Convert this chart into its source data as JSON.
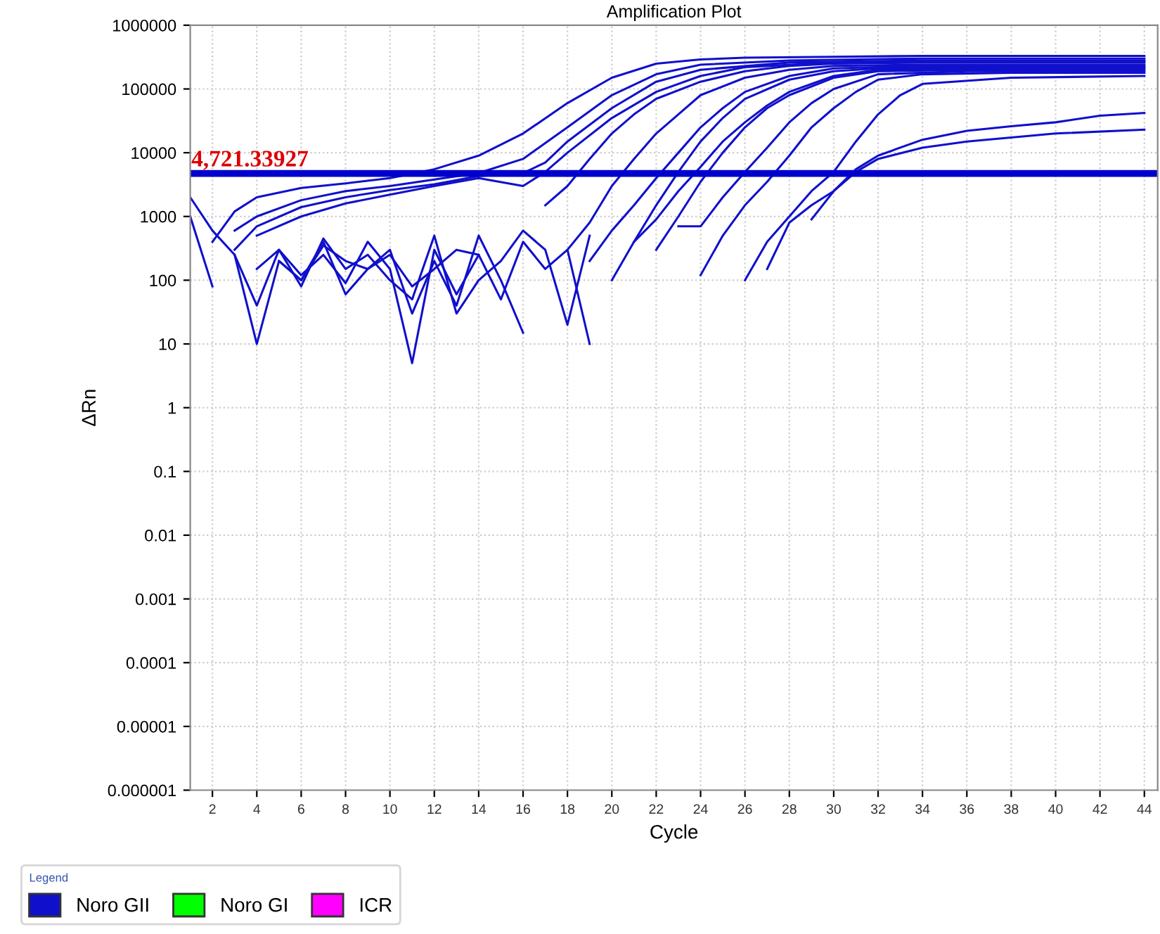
{
  "chart_data": {
    "type": "line",
    "title": "Amplification Plot",
    "xlabel": "Cycle",
    "ylabel": "ΔRn",
    "log": "y",
    "grid": true,
    "legend": "bottom",
    "legend_title": "Legend",
    "line_style": "solid",
    "marker": "none",
    "xlim": [
      1,
      44.6
    ],
    "xticks": [
      2,
      4,
      6,
      8,
      10,
      12,
      14,
      16,
      18,
      20,
      22,
      24,
      26,
      28,
      30,
      32,
      34,
      36,
      38,
      40,
      42,
      44
    ],
    "ylim": [
      1e-06,
      1000000
    ],
    "yticks": [
      {
        "value": 1e-06,
        "label": "0.000001"
      },
      {
        "value": 1e-05,
        "label": "0.00001"
      },
      0.0001,
      0.001,
      0.01,
      0.1,
      1,
      10,
      100,
      1000,
      10000,
      100000,
      1000000
    ],
    "ref_lines": [
      {
        "axis": "y",
        "value": 4721.33927,
        "label": "4,721.33927",
        "color": "#0000cc"
      }
    ],
    "series": [
      {
        "name": "Noro GII",
        "color": "#1010cc",
        "x": [
          2,
          3,
          4,
          6,
          8,
          10,
          12,
          14,
          16,
          18,
          20,
          22,
          24,
          26,
          30,
          34,
          40,
          44
        ],
        "values": [
          400,
          1200,
          2000,
          2800,
          3300,
          4000,
          5500,
          9000,
          20000,
          60000,
          150000,
          250000,
          290000,
          310000,
          320000,
          330000,
          330000,
          330000
        ]
      },
      {
        "color": "#1010cc",
        "x": [
          3,
          4,
          6,
          8,
          10,
          12,
          14,
          16,
          18,
          20,
          22,
          24,
          28,
          34,
          40,
          44
        ],
        "values": [
          600,
          1000,
          1800,
          2500,
          3000,
          3800,
          4800,
          8000,
          25000,
          80000,
          170000,
          240000,
          280000,
          300000,
          300000,
          300000
        ]
      },
      {
        "color": "#1010cc",
        "x": [
          3,
          4,
          6,
          8,
          10,
          12,
          14,
          16,
          17,
          18,
          20,
          22,
          24,
          28,
          34,
          40,
          44
        ],
        "values": [
          300,
          700,
          1400,
          2000,
          2600,
          3200,
          4300,
          4800,
          7000,
          15000,
          50000,
          130000,
          200000,
          260000,
          280000,
          280000,
          280000
        ]
      },
      {
        "color": "#1010cc",
        "x": [
          4,
          6,
          8,
          10,
          12,
          14,
          16,
          17,
          18,
          20,
          22,
          24,
          26,
          30,
          36,
          44
        ],
        "values": [
          500,
          1000,
          1600,
          2200,
          3000,
          4000,
          3000,
          5000,
          10000,
          35000,
          90000,
          160000,
          220000,
          260000,
          270000,
          270000
        ]
      },
      {
        "color": "#1010cc",
        "x": [
          17,
          18,
          19,
          20,
          21,
          22,
          24,
          26,
          28,
          30,
          34,
          40,
          44
        ],
        "values": [
          1500,
          3000,
          8000,
          20000,
          40000,
          70000,
          130000,
          190000,
          230000,
          250000,
          260000,
          260000,
          260000
        ]
      },
      {
        "color": "#1010cc",
        "x": [
          18,
          19,
          20,
          21,
          22,
          23,
          24,
          26,
          28,
          30,
          34,
          40,
          44
        ],
        "values": [
          300,
          800,
          3000,
          8000,
          20000,
          40000,
          80000,
          150000,
          200000,
          230000,
          240000,
          240000,
          240000
        ]
      },
      {
        "color": "#1010cc",
        "x": [
          19,
          20,
          21,
          22,
          23,
          24,
          25,
          26,
          28,
          30,
          34,
          40,
          44
        ],
        "values": [
          200,
          600,
          1500,
          4000,
          10000,
          25000,
          50000,
          90000,
          160000,
          210000,
          230000,
          230000,
          230000
        ]
      },
      {
        "color": "#1010cc",
        "x": [
          20,
          21,
          22,
          23,
          24,
          25,
          26,
          28,
          30,
          32,
          36,
          44
        ],
        "values": [
          100,
          400,
          1500,
          5000,
          15000,
          35000,
          70000,
          140000,
          190000,
          210000,
          220000,
          220000
        ]
      },
      {
        "color": "#1010cc",
        "x": [
          21,
          22,
          23,
          24,
          25,
          26,
          27,
          28,
          30,
          32,
          36,
          44
        ],
        "values": [
          400,
          900,
          2500,
          6000,
          15000,
          30000,
          55000,
          90000,
          160000,
          200000,
          210000,
          210000
        ]
      },
      {
        "color": "#1010cc",
        "x": [
          22,
          23,
          24,
          25,
          26,
          27,
          28,
          30,
          32,
          36,
          44
        ],
        "values": [
          300,
          1000,
          3500,
          10000,
          25000,
          50000,
          80000,
          150000,
          190000,
          200000,
          200000
        ]
      },
      {
        "color": "#1010cc",
        "x": [
          23,
          24,
          25,
          26,
          27,
          28,
          29,
          30,
          32,
          36,
          44
        ],
        "values": [
          700,
          700,
          2000,
          5000,
          12000,
          30000,
          60000,
          100000,
          170000,
          190000,
          190000
        ]
      },
      {
        "color": "#1010cc",
        "x": [
          24,
          25,
          26,
          27,
          28,
          29,
          30,
          31,
          32,
          34,
          38,
          44
        ],
        "values": [
          120,
          500,
          1500,
          3500,
          9000,
          25000,
          50000,
          90000,
          140000,
          170000,
          180000,
          180000
        ]
      },
      {
        "color": "#1010cc",
        "x": [
          26,
          27,
          28,
          29,
          30,
          31,
          32,
          33,
          34,
          38,
          44
        ],
        "values": [
          100,
          400,
          1000,
          2500,
          5000,
          15000,
          40000,
          80000,
          120000,
          150000,
          160000
        ]
      },
      {
        "color": "#1010cc",
        "x": [
          27,
          28,
          29,
          30,
          31,
          32,
          34,
          36,
          40,
          44
        ],
        "values": [
          150,
          800,
          1500,
          2500,
          5000,
          8000,
          12000,
          15000,
          20000,
          23000
        ]
      },
      {
        "color": "#1010cc",
        "x": [
          29,
          30,
          31,
          32,
          34,
          36,
          38,
          40,
          42,
          44
        ],
        "values": [
          900,
          2500,
          5500,
          9000,
          16000,
          22000,
          26000,
          30000,
          38000,
          42000
        ]
      },
      {
        "color": "#1010cc",
        "x": [
          1,
          2
        ],
        "values": [
          1000,
          80
        ]
      },
      {
        "color": "#1010cc",
        "x": [
          1,
          2,
          3,
          4,
          5,
          6,
          7,
          8,
          9,
          10,
          11,
          12,
          13,
          14
        ],
        "values": [
          2000,
          600,
          250,
          40,
          300,
          120,
          250,
          90,
          400,
          150,
          5,
          300,
          60,
          250
        ]
      },
      {
        "color": "#1010cc",
        "x": [
          3,
          4,
          5,
          6,
          7,
          8,
          9,
          10,
          11,
          12,
          13,
          14,
          15,
          16
        ],
        "values": [
          250,
          10,
          200,
          100,
          400,
          60,
          150,
          300,
          30,
          200,
          40,
          500,
          100,
          15
        ]
      },
      {
        "color": "#1010cc",
        "x": [
          4,
          5,
          6,
          7,
          8,
          9,
          10,
          11,
          12,
          13,
          14,
          15,
          16,
          17,
          18,
          19
        ],
        "values": [
          150,
          300,
          80,
          450,
          150,
          250,
          100,
          50,
          500,
          30,
          100,
          200,
          600,
          300,
          20,
          500
        ]
      },
      {
        "color": "#1010cc",
        "x": [
          5,
          6,
          7,
          8,
          9,
          10,
          11,
          12,
          13,
          14,
          15,
          16,
          17,
          18,
          19
        ],
        "values": [
          200,
          100,
          350,
          200,
          150,
          250,
          80,
          150,
          300,
          250,
          50,
          400,
          150,
          300,
          10
        ]
      },
      {
        "name": "Noro GI",
        "color": "#00ff00"
      },
      {
        "name": "ICR",
        "color": "#ff00ff"
      }
    ]
  }
}
